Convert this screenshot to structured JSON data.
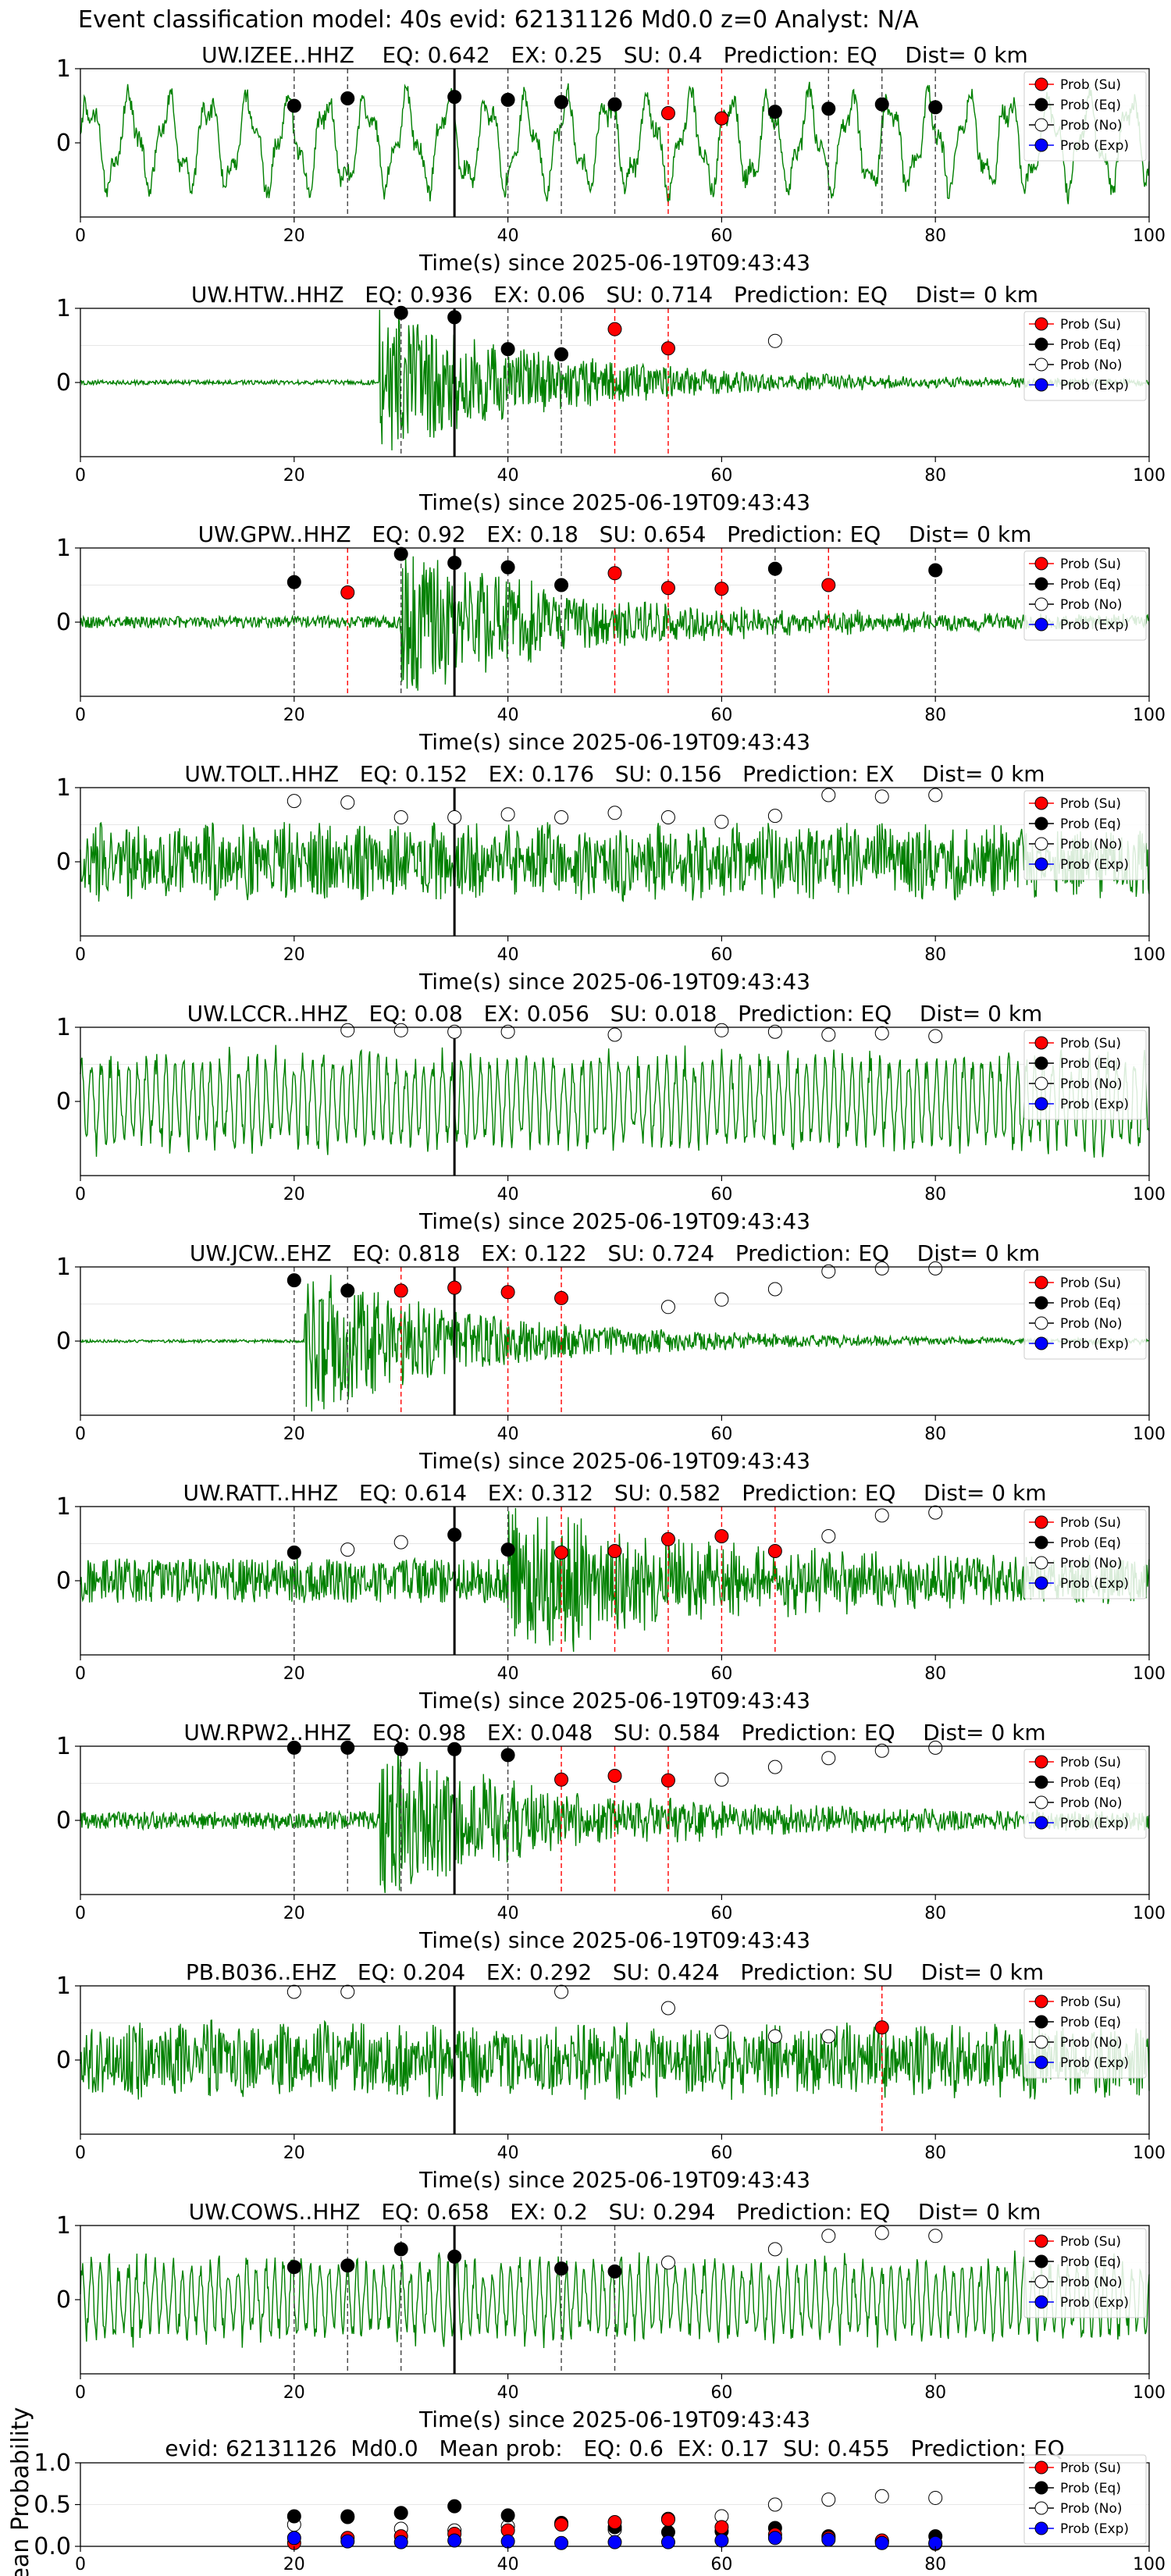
{
  "figure": {
    "suptitle": "Event classification model: 40s evid: 62131126 Md0.0 z=0 Analyst: N/A",
    "legend": {
      "items": [
        {
          "label": "Prob (Su)",
          "color": "#ff0000",
          "fill": true
        },
        {
          "label": "Prob (Eq)",
          "color": "#000000",
          "fill": true
        },
        {
          "label": "Prob (No)",
          "color": "#000000",
          "fill": false
        },
        {
          "label": "Prob (Exp)",
          "color": "#0000ff",
          "fill": true
        }
      ]
    },
    "colors": {
      "waveform": "#008000",
      "su": "#ff0000",
      "eq": "#000000",
      "exp": "#0000ff",
      "pick": "#000000"
    }
  },
  "chart_data": [
    {
      "type": "line",
      "title": "UW.IZEE..HHZ    EQ: 0.642   EX: 0.25   SU: 0.4   Prediction: EQ    Dist= 0 km",
      "xlabel": "Time(s) since 2025-06-19T09:43:43",
      "xlim": [
        0,
        100
      ],
      "ylim": [
        -1,
        1
      ],
      "xticks": [
        0,
        20,
        40,
        60,
        80,
        100
      ],
      "yticks": [
        0,
        1
      ],
      "pick_time": 35,
      "noise": 0.65,
      "style": "lowfreq",
      "onset": 0,
      "eq": [
        [
          20,
          0.5
        ],
        [
          25,
          0.6
        ],
        [
          35,
          0.62
        ],
        [
          40,
          0.58
        ],
        [
          45,
          0.55
        ],
        [
          50,
          0.52
        ],
        [
          65,
          0.42
        ],
        [
          70,
          0.46
        ],
        [
          75,
          0.52
        ],
        [
          80,
          0.48
        ]
      ],
      "su": [
        [
          55,
          0.4
        ],
        [
          60,
          0.33
        ]
      ],
      "no": []
    },
    {
      "type": "line",
      "title": "UW.HTW..HHZ   EQ: 0.936   EX: 0.06   SU: 0.714   Prediction: EQ    Dist= 0 km",
      "xlabel": "Time(s) since 2025-06-19T09:43:43",
      "xlim": [
        0,
        100
      ],
      "ylim": [
        -1,
        1
      ],
      "xticks": [
        0,
        20,
        40,
        60,
        80,
        100
      ],
      "yticks": [
        0,
        1
      ],
      "pick_time": 35,
      "noise": 0.03,
      "style": "event",
      "onset": 28,
      "eq": [
        [
          30,
          0.94
        ],
        [
          35,
          0.88
        ],
        [
          40,
          0.45
        ],
        [
          45,
          0.38
        ]
      ],
      "su": [
        [
          50,
          0.72
        ],
        [
          55,
          0.46
        ]
      ],
      "no": [
        [
          65,
          0.56
        ]
      ]
    },
    {
      "type": "line",
      "title": "UW.GPW..HHZ   EQ: 0.92   EX: 0.18   SU: 0.654   Prediction: EQ    Dist= 0 km",
      "xlabel": "Time(s) since 2025-06-19T09:43:43",
      "xlim": [
        0,
        100
      ],
      "ylim": [
        -1,
        1
      ],
      "xticks": [
        0,
        20,
        40,
        60,
        80,
        100
      ],
      "yticks": [
        0,
        1
      ],
      "pick_time": 35,
      "noise": 0.08,
      "style": "event",
      "onset": 30,
      "eq": [
        [
          20,
          0.54
        ],
        [
          30,
          0.92
        ],
        [
          35,
          0.8
        ],
        [
          40,
          0.74
        ],
        [
          45,
          0.5
        ],
        [
          65,
          0.72
        ],
        [
          80,
          0.7
        ]
      ],
      "su": [
        [
          25,
          0.4
        ],
        [
          50,
          0.66
        ],
        [
          55,
          0.46
        ],
        [
          60,
          0.45
        ],
        [
          70,
          0.5
        ]
      ],
      "no": []
    },
    {
      "type": "line",
      "title": "UW.TOLT..HHZ   EQ: 0.152   EX: 0.176   SU: 0.156   Prediction: EX    Dist= 0 km",
      "xlabel": "Time(s) since 2025-06-19T09:43:43",
      "xlim": [
        0,
        100
      ],
      "ylim": [
        -1,
        1
      ],
      "xticks": [
        0,
        20,
        40,
        60,
        80,
        100
      ],
      "yticks": [
        0,
        1
      ],
      "pick_time": 35,
      "noise": 0.45,
      "style": "highfreq",
      "onset": 0,
      "eq": [],
      "su": [],
      "no": [
        [
          20,
          0.82
        ],
        [
          25,
          0.8
        ],
        [
          30,
          0.6
        ],
        [
          35,
          0.6
        ],
        [
          40,
          0.64
        ],
        [
          45,
          0.6
        ],
        [
          50,
          0.66
        ],
        [
          55,
          0.6
        ],
        [
          60,
          0.54
        ],
        [
          65,
          0.62
        ],
        [
          70,
          0.9
        ],
        [
          75,
          0.88
        ],
        [
          80,
          0.9
        ]
      ]
    },
    {
      "type": "line",
      "title": "UW.LCCR..HHZ   EQ: 0.08   EX: 0.056   SU: 0.018   Prediction: EQ    Dist= 0 km",
      "xlabel": "Time(s) since 2025-06-19T09:43:43",
      "xlim": [
        0,
        100
      ],
      "ylim": [
        -1,
        1
      ],
      "xticks": [
        0,
        20,
        40,
        60,
        80,
        100
      ],
      "yticks": [
        0,
        1
      ],
      "pick_time": 35,
      "noise": 0.65,
      "style": "midfreq",
      "onset": 0,
      "eq": [],
      "su": [],
      "no": [
        [
          25,
          0.96
        ],
        [
          30,
          0.96
        ],
        [
          35,
          0.94
        ],
        [
          40,
          0.94
        ],
        [
          50,
          0.9
        ],
        [
          60,
          0.96
        ],
        [
          65,
          0.94
        ],
        [
          70,
          0.9
        ],
        [
          75,
          0.92
        ],
        [
          80,
          0.88
        ]
      ]
    },
    {
      "type": "line",
      "title": "UW.JCW..EHZ   EQ: 0.818   EX: 0.122   SU: 0.724   Prediction: EQ    Dist= 0 km",
      "xlabel": "Time(s) since 2025-06-19T09:43:43",
      "xlim": [
        0,
        100
      ],
      "ylim": [
        -1,
        1
      ],
      "xticks": [
        0,
        20,
        40,
        60,
        80,
        100
      ],
      "yticks": [
        0,
        1
      ],
      "pick_time": 35,
      "noise": 0.02,
      "style": "event",
      "onset": 21,
      "eq": [
        [
          20,
          0.82
        ],
        [
          25,
          0.68
        ]
      ],
      "su": [
        [
          30,
          0.68
        ],
        [
          35,
          0.72
        ],
        [
          40,
          0.66
        ],
        [
          45,
          0.58
        ]
      ],
      "no": [
        [
          55,
          0.46
        ],
        [
          60,
          0.56
        ],
        [
          65,
          0.7
        ],
        [
          70,
          0.94
        ],
        [
          75,
          0.98
        ],
        [
          80,
          0.98
        ]
      ]
    },
    {
      "type": "line",
      "title": "UW.RATT..HHZ   EQ: 0.614   EX: 0.312   SU: 0.582   Prediction: EQ    Dist= 0 km",
      "xlabel": "Time(s) since 2025-06-19T09:43:43",
      "xlim": [
        0,
        100
      ],
      "ylim": [
        -1,
        1
      ],
      "xticks": [
        0,
        20,
        40,
        60,
        80,
        100
      ],
      "yticks": [
        0,
        1
      ],
      "pick_time": 35,
      "noise": 0.3,
      "style": "event",
      "onset": 40,
      "eq": [
        [
          20,
          0.38
        ],
        [
          35,
          0.62
        ],
        [
          40,
          0.42
        ]
      ],
      "su": [
        [
          45,
          0.38
        ],
        [
          50,
          0.4
        ],
        [
          55,
          0.56
        ],
        [
          60,
          0.6
        ],
        [
          65,
          0.4
        ]
      ],
      "no": [
        [
          25,
          0.42
        ],
        [
          30,
          0.52
        ],
        [
          70,
          0.6
        ],
        [
          75,
          0.88
        ],
        [
          80,
          0.92
        ]
      ]
    },
    {
      "type": "line",
      "title": "UW.RPW2..HHZ   EQ: 0.98   EX: 0.048   SU: 0.584   Prediction: EQ    Dist= 0 km",
      "xlabel": "Time(s) since 2025-06-19T09:43:43",
      "xlim": [
        0,
        100
      ],
      "ylim": [
        -1,
        1
      ],
      "xticks": [
        0,
        20,
        40,
        60,
        80,
        100
      ],
      "yticks": [
        0,
        1
      ],
      "pick_time": 35,
      "noise": 0.12,
      "style": "event",
      "onset": 28,
      "eq": [
        [
          20,
          0.98
        ],
        [
          25,
          0.98
        ],
        [
          30,
          0.96
        ],
        [
          35,
          0.96
        ],
        [
          40,
          0.88
        ]
      ],
      "su": [
        [
          45,
          0.55
        ],
        [
          50,
          0.6
        ],
        [
          55,
          0.54
        ]
      ],
      "no": [
        [
          60,
          0.55
        ],
        [
          65,
          0.72
        ],
        [
          70,
          0.84
        ],
        [
          75,
          0.94
        ],
        [
          80,
          0.98
        ]
      ]
    },
    {
      "type": "line",
      "title": "PB.B036..EHZ   EQ: 0.204   EX: 0.292   SU: 0.424   Prediction: SU    Dist= 0 km",
      "xlabel": "Time(s) since 2025-06-19T09:43:43",
      "xlim": [
        0,
        100
      ],
      "ylim": [
        -1,
        1
      ],
      "xticks": [
        0,
        20,
        40,
        60,
        80,
        100
      ],
      "yticks": [
        0,
        1
      ],
      "pick_time": 35,
      "noise": 0.45,
      "style": "highfreq",
      "onset": 0,
      "eq": [],
      "su": [
        [
          75,
          0.44
        ]
      ],
      "no": [
        [
          20,
          0.92
        ],
        [
          25,
          0.92
        ],
        [
          45,
          0.92
        ],
        [
          55,
          0.7
        ],
        [
          60,
          0.38
        ],
        [
          65,
          0.32
        ],
        [
          70,
          0.32
        ]
      ]
    },
    {
      "type": "line",
      "title": "UW.COWS..HHZ   EQ: 0.658   EX: 0.2   SU: 0.294   Prediction: EQ    Dist= 0 km",
      "xlabel": "Time(s) since 2025-06-19T09:43:43",
      "xlim": [
        0,
        100
      ],
      "ylim": [
        -1,
        1
      ],
      "xticks": [
        0,
        20,
        40,
        60,
        80,
        100
      ],
      "yticks": [
        0,
        1
      ],
      "pick_time": 35,
      "noise": 0.55,
      "style": "midfreq",
      "onset": 0,
      "eq": [
        [
          20,
          0.44
        ],
        [
          25,
          0.46
        ],
        [
          30,
          0.68
        ],
        [
          35,
          0.58
        ],
        [
          45,
          0.42
        ],
        [
          50,
          0.38
        ]
      ],
      "su": [],
      "no": [
        [
          55,
          0.5
        ],
        [
          65,
          0.68
        ],
        [
          70,
          0.86
        ],
        [
          75,
          0.9
        ],
        [
          80,
          0.86
        ]
      ]
    },
    {
      "type": "scatter",
      "title": "evid: 62131126  Md0.0   Mean prob:   EQ: 0.6  EX: 0.17  SU: 0.455   Prediction: EQ",
      "ylabel": "Mean Probability",
      "xlim": [
        0,
        100
      ],
      "ylim": [
        0,
        1
      ],
      "xticks": [
        0,
        20,
        40,
        60,
        80,
        100
      ],
      "yticks": [
        0.0,
        0.5,
        1.0
      ],
      "ytick_labels": [
        "0.0",
        "0.5",
        "1.0"
      ],
      "eq": [
        [
          20,
          0.36
        ],
        [
          25,
          0.35
        ],
        [
          30,
          0.4
        ],
        [
          35,
          0.48
        ],
        [
          40,
          0.37
        ],
        [
          45,
          0.28
        ],
        [
          50,
          0.23
        ],
        [
          55,
          0.17
        ],
        [
          60,
          0.18
        ],
        [
          65,
          0.22
        ],
        [
          70,
          0.12
        ],
        [
          75,
          0.06
        ],
        [
          80,
          0.12
        ]
      ],
      "su": [
        [
          20,
          0.04
        ],
        [
          25,
          0.1
        ],
        [
          30,
          0.12
        ],
        [
          35,
          0.15
        ],
        [
          40,
          0.19
        ],
        [
          45,
          0.26
        ],
        [
          50,
          0.29
        ],
        [
          55,
          0.32
        ],
        [
          60,
          0.23
        ],
        [
          65,
          0.14
        ],
        [
          70,
          0.1
        ],
        [
          75,
          0.07
        ],
        [
          80,
          0.03
        ]
      ],
      "no": [
        [
          20,
          0.26
        ],
        [
          25,
          0.36
        ],
        [
          30,
          0.21
        ],
        [
          35,
          0.19
        ],
        [
          40,
          0.24
        ],
        [
          45,
          0.27
        ],
        [
          50,
          0.2
        ],
        [
          55,
          0.33
        ],
        [
          60,
          0.36
        ],
        [
          65,
          0.5
        ],
        [
          70,
          0.56
        ],
        [
          75,
          0.6
        ],
        [
          80,
          0.58
        ]
      ],
      "exp": [
        [
          20,
          0.1
        ],
        [
          25,
          0.06
        ],
        [
          30,
          0.05
        ],
        [
          35,
          0.07
        ],
        [
          40,
          0.06
        ],
        [
          45,
          0.04
        ],
        [
          50,
          0.05
        ],
        [
          55,
          0.05
        ],
        [
          60,
          0.07
        ],
        [
          65,
          0.1
        ],
        [
          70,
          0.08
        ],
        [
          75,
          0.04
        ],
        [
          80,
          0.04
        ]
      ]
    }
  ]
}
